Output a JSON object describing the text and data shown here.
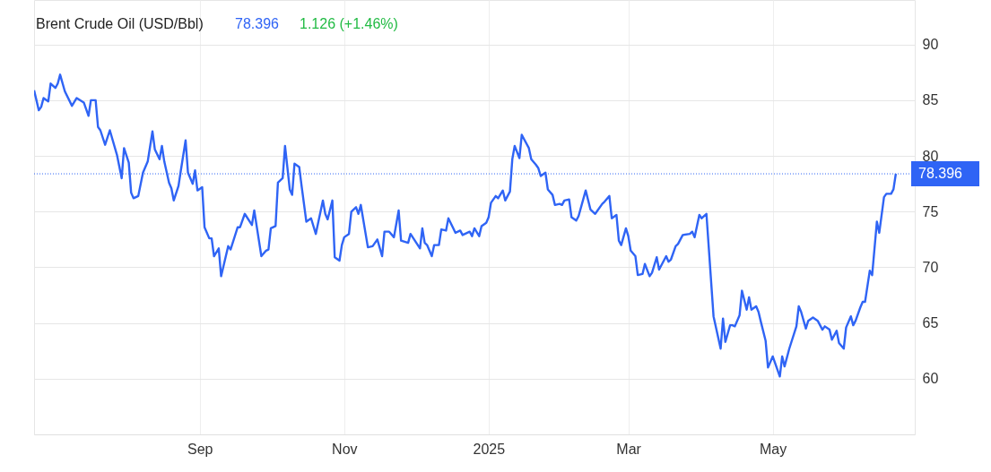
{
  "chart_data": {
    "type": "line",
    "title": "Brent Crude Oil (USD/Bbl)",
    "annotations": [
      "78.396",
      "1.126 (+1.46%)"
    ],
    "x": [
      "2024-06-23",
      "2024-06-25",
      "2024-06-26",
      "2024-06-27",
      "2024-06-29",
      "2024-06-30",
      "2024-07-02",
      "2024-07-03",
      "2024-07-04",
      "2024-07-06",
      "2024-07-09",
      "2024-07-11",
      "2024-07-14",
      "2024-07-16",
      "2024-07-17",
      "2024-07-19",
      "2024-07-20",
      "2024-07-21",
      "2024-07-23",
      "2024-07-25",
      "2024-07-28",
      "2024-07-30",
      "2024-07-31",
      "2024-08-02",
      "2024-08-03",
      "2024-08-04",
      "2024-08-06",
      "2024-08-08",
      "2024-08-10",
      "2024-08-12",
      "2024-08-13",
      "2024-08-15",
      "2024-08-16",
      "2024-08-17",
      "2024-08-19",
      "2024-08-20",
      "2024-08-21",
      "2024-08-23",
      "2024-08-24",
      "2024-08-26",
      "2024-08-27",
      "2024-08-29",
      "2024-08-30",
      "2024-08-31",
      "2024-09-02",
      "2024-09-03",
      "2024-09-05",
      "2024-09-06",
      "2024-09-07",
      "2024-09-09",
      "2024-09-10",
      "2024-09-13",
      "2024-09-14",
      "2024-09-17",
      "2024-09-18",
      "2024-09-20",
      "2024-09-23",
      "2024-09-24",
      "2024-09-27",
      "2024-09-29",
      "2024-09-30",
      "2024-10-01",
      "2024-10-03",
      "2024-10-04",
      "2024-10-06",
      "2024-10-07",
      "2024-10-09",
      "2024-10-10",
      "2024-10-11",
      "2024-10-13",
      "2024-10-14",
      "2024-10-16",
      "2024-10-18",
      "2024-10-20",
      "2024-10-23",
      "2024-10-24",
      "2024-10-25",
      "2024-10-27",
      "2024-10-28",
      "2024-10-30",
      "2024-10-31",
      "2024-11-01",
      "2024-11-03",
      "2024-11-04",
      "2024-11-06",
      "2024-11-07",
      "2024-11-08",
      "2024-11-11",
      "2024-11-13",
      "2024-11-15",
      "2024-11-17",
      "2024-11-18",
      "2024-11-20",
      "2024-11-22",
      "2024-11-24",
      "2024-11-25",
      "2024-11-28",
      "2024-11-29",
      "2024-12-03",
      "2024-12-04",
      "2024-12-05",
      "2024-12-06",
      "2024-12-08",
      "2024-12-09",
      "2024-12-11",
      "2024-12-12",
      "2024-12-14",
      "2024-12-15",
      "2024-12-18",
      "2024-12-20",
      "2024-12-21",
      "2024-12-24",
      "2024-12-25",
      "2024-12-26",
      "2024-12-28",
      "2024-12-29",
      "2024-12-31",
      "2025-01-01",
      "2025-01-02",
      "2025-01-04",
      "2025-01-05",
      "2025-01-07",
      "2025-01-08",
      "2025-01-10",
      "2025-01-11",
      "2025-01-12",
      "2025-01-14",
      "2025-01-15",
      "2025-01-16",
      "2025-01-18",
      "2025-01-19",
      "2025-01-21",
      "2025-01-22",
      "2025-01-23",
      "2025-01-25",
      "2025-01-26",
      "2025-01-28",
      "2025-01-29",
      "2025-01-31",
      "2025-02-01",
      "2025-02-02",
      "2025-02-04",
      "2025-02-05",
      "2025-02-07",
      "2025-02-08",
      "2025-02-11",
      "2025-02-13",
      "2025-02-15",
      "2025-02-18",
      "2025-02-19",
      "2025-02-21",
      "2025-02-22",
      "2025-02-24",
      "2025-02-25",
      "2025-02-26",
      "2025-02-28",
      "2025-03-01",
      "2025-03-02",
      "2025-03-04",
      "2025-03-05",
      "2025-03-07",
      "2025-03-08",
      "2025-03-10",
      "2025-03-11",
      "2025-03-13",
      "2025-03-14",
      "2025-03-17",
      "2025-03-18",
      "2025-03-19",
      "2025-03-21",
      "2025-03-22",
      "2025-03-24",
      "2025-03-27",
      "2025-03-28",
      "2025-03-29",
      "2025-03-31",
      "2025-04-01",
      "2025-04-03",
      "2025-04-06",
      "2025-04-09",
      "2025-04-10",
      "2025-04-11",
      "2025-04-13",
      "2025-04-14",
      "2025-04-15",
      "2025-04-17",
      "2025-04-18",
      "2025-04-20",
      "2025-04-21",
      "2025-04-22",
      "2025-04-24",
      "2025-04-25",
      "2025-04-26",
      "2025-04-28",
      "2025-04-29",
      "2025-05-01",
      "2025-05-02",
      "2025-05-04",
      "2025-05-05",
      "2025-05-06",
      "2025-05-08",
      "2025-05-11",
      "2025-05-12",
      "2025-05-13",
      "2025-05-15",
      "2025-05-16",
      "2025-05-18",
      "2025-05-20",
      "2025-05-22",
      "2025-05-23",
      "2025-05-25",
      "2025-05-26",
      "2025-05-28",
      "2025-05-29",
      "2025-05-31",
      "2025-06-01",
      "2025-06-03",
      "2025-06-04",
      "2025-06-05",
      "2025-06-07",
      "2025-06-08",
      "2025-06-09",
      "2025-06-11",
      "2025-06-12",
      "2025-06-14",
      "2025-06-15",
      "2025-06-17",
      "2025-06-18",
      "2025-06-20",
      "2025-06-21",
      "2025-06-22"
    ],
    "series": [
      {
        "color": "#2f64f5",
        "values": [
          85.9,
          84.1,
          84.4,
          85.2,
          84.9,
          86.5,
          86.1,
          86.5,
          87.3,
          85.8,
          84.5,
          85.2,
          84.8,
          83.6,
          85.0,
          85.0,
          82.6,
          82.3,
          81.0,
          82.3,
          80.1,
          78.0,
          80.7,
          79.4,
          76.7,
          76.2,
          76.4,
          78.5,
          79.5,
          82.2,
          80.6,
          79.7,
          80.9,
          79.5,
          77.6,
          77.1,
          76.0,
          77.3,
          78.7,
          81.4,
          78.5,
          77.5,
          78.7,
          76.9,
          77.2,
          73.6,
          72.6,
          72.6,
          71.0,
          71.7,
          69.2,
          71.9,
          71.6,
          73.6,
          73.6,
          74.8,
          73.8,
          75.1,
          71.0,
          71.5,
          71.6,
          73.5,
          73.7,
          77.6,
          78.0,
          80.9,
          77.0,
          76.5,
          79.3,
          79.0,
          77.3,
          74.1,
          74.4,
          73.0,
          76.0,
          74.8,
          74.3,
          76.0,
          70.9,
          70.6,
          72.0,
          72.7,
          73.0,
          75.0,
          75.4,
          74.8,
          75.6,
          71.8,
          71.9,
          72.5,
          71.0,
          73.2,
          73.2,
          72.7,
          75.1,
          72.4,
          72.2,
          73.0,
          71.7,
          73.5,
          72.2,
          72.0,
          71.0,
          72.0,
          72.0,
          73.4,
          73.3,
          74.4,
          73.1,
          73.3,
          72.9,
          73.2,
          72.8,
          73.5,
          72.8,
          73.7,
          74.0,
          74.5,
          75.8,
          76.4,
          76.2,
          76.9,
          76.0,
          76.8,
          79.7,
          80.9,
          79.8,
          81.9,
          81.5,
          80.7,
          79.7,
          79.2,
          78.9,
          78.2,
          78.5,
          77.0,
          76.5,
          75.6,
          75.7,
          75.6,
          76.0,
          76.1,
          74.5,
          74.2,
          74.6,
          76.9,
          75.2,
          74.8,
          75.7,
          75.9,
          76.4,
          74.4,
          74.7,
          72.4,
          72.0,
          73.5,
          72.8,
          71.5,
          71.0,
          69.3,
          69.4,
          70.3,
          69.2,
          69.5,
          70.9,
          69.8,
          71.0,
          70.5,
          70.7,
          71.9,
          72.1,
          72.9,
          73.0,
          73.2,
          72.7,
          74.7,
          74.4,
          74.8,
          65.6,
          62.7,
          65.4,
          63.3,
          64.8,
          64.8,
          64.7,
          65.7,
          67.9,
          66.2,
          67.3,
          66.2,
          66.5,
          66.0,
          65.1,
          63.4,
          61.0,
          62.0,
          61.4,
          60.2,
          62.0,
          61.1,
          62.7,
          64.7,
          66.5,
          66.0,
          64.5,
          65.2,
          65.5,
          65.2,
          64.4,
          64.7,
          64.4,
          63.5,
          64.3,
          63.2,
          62.7,
          64.6,
          65.6,
          64.8,
          65.2,
          66.4,
          66.9,
          66.9,
          69.7,
          69.3,
          74.1,
          73.1,
          76.3,
          76.6,
          76.6,
          77.0,
          78.396
        ]
      }
    ],
    "xlim": [
      "2024-06-23",
      "2025-06-30"
    ],
    "xticks": [
      {
        "value": "2024-09-01",
        "label": "Sep"
      },
      {
        "value": "2024-11-01",
        "label": "Nov"
      },
      {
        "value": "2025-01-01",
        "label": "2025"
      },
      {
        "value": "2025-03-01",
        "label": "Mar"
      },
      {
        "value": "2025-05-01",
        "label": "May"
      }
    ],
    "ylim": [
      55,
      94
    ],
    "yticks": [
      60,
      65,
      70,
      75,
      80,
      85,
      90
    ],
    "grid": true,
    "marker": "none",
    "line_style": "solid",
    "ref_lines": [
      {
        "axis": "y",
        "value": 78.396,
        "label": "78.396",
        "color": "#2f64f5",
        "line_style": "dotted"
      }
    ]
  }
}
